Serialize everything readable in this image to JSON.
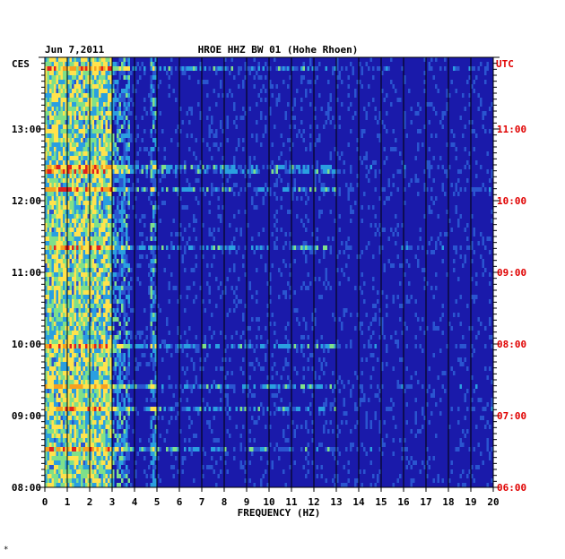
{
  "header": {
    "date": "Jun 7,2011",
    "station": "HROE HHZ BW 01 (Hohe Rhoen)"
  },
  "chart_data": {
    "type": "heatmap",
    "title": "HROE HHZ BW 01 (Hohe Rhoen)",
    "date": "Jun 7,2011",
    "xlabel": "FREQUENCY (HZ)",
    "xlim": [
      0,
      20
    ],
    "x_ticks": [
      "0",
      "1",
      "2",
      "3",
      "4",
      "5",
      "6",
      "7",
      "8",
      "9",
      "10",
      "11",
      "12",
      "13",
      "14",
      "15",
      "16",
      "17",
      "18",
      "19",
      "20"
    ],
    "left_axis": {
      "timezone": "CES",
      "ticks": [
        "13:00",
        "12:00",
        "11:00",
        "10:00",
        "09:00",
        "08:00"
      ],
      "range_hours": [
        8,
        14
      ]
    },
    "right_axis": {
      "timezone": "UTC",
      "ticks": [
        "11:00",
        "10:00",
        "09:00",
        "08:00",
        "07:00",
        "06:00"
      ],
      "range_hours": [
        6,
        12
      ]
    },
    "grid": true,
    "colors": {
      "background": "#1a1aaa",
      "low": "#0a1e9c",
      "mid": "#2a9fe0",
      "high": "#ffe34d",
      "peak": "#e02020",
      "utc_label": "#e00000"
    },
    "energy_bands_hz": [
      {
        "from": 0,
        "to": 3,
        "level": "high"
      },
      {
        "from": 3,
        "to": 3.8,
        "level": "mid"
      },
      {
        "from": 4.7,
        "to": 5,
        "level": "mid"
      }
    ]
  },
  "footer": {
    "mark": "*"
  }
}
